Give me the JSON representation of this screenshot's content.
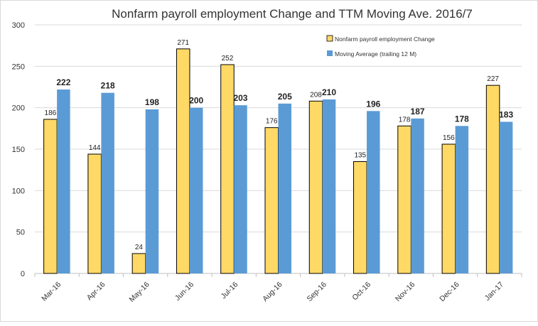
{
  "chart_data": {
    "type": "bar",
    "title": "Nonfarm payroll employment Change and TTM Moving Ave. 2016/7",
    "xlabel": "",
    "ylabel": "",
    "ylim": [
      0,
      300
    ],
    "yticks": [
      0,
      50,
      100,
      150,
      200,
      250,
      300
    ],
    "grid": true,
    "legend_position": "top-right",
    "categories": [
      "Mar-16",
      "Apr-16",
      "May-16",
      "Jun-16",
      "Jul-16",
      "Aug-16",
      "Sep-16",
      "Oct-16",
      "Nov-16",
      "Dec-16",
      "Jan-17"
    ],
    "series": [
      {
        "name": "Nonfarm payroll employment Change",
        "color": "#ffd966",
        "values": [
          186,
          144,
          24,
          271,
          252,
          176,
          208,
          135,
          178,
          156,
          227
        ]
      },
      {
        "name": "Moving Average (trailing 12 M)",
        "color": "#5b9bd5",
        "values": [
          222,
          218,
          198,
          200,
          203,
          205,
          210,
          196,
          187,
          178,
          183
        ]
      }
    ]
  }
}
